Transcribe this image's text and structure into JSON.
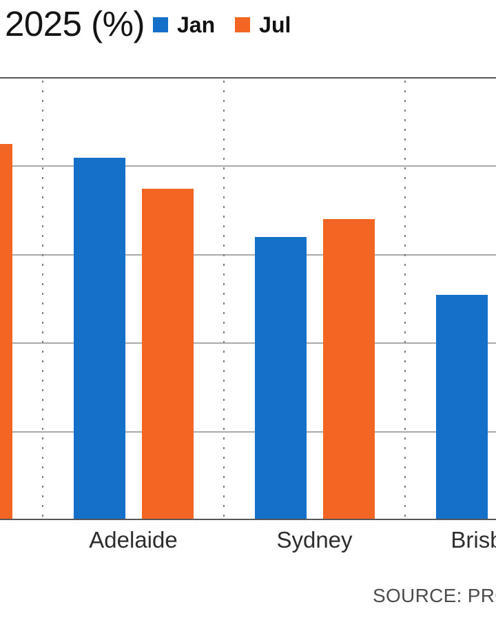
{
  "header": {
    "title": "2025 (%)"
  },
  "source": {
    "text": "SOURCE: PRO"
  },
  "chart_data": {
    "type": "bar",
    "title": "2025 (%)",
    "categories": [
      "",
      "Adelaide",
      "Sydney",
      "Brisbane"
    ],
    "series": [
      {
        "name": "Jan",
        "color": "#1470C8",
        "values": [
          null,
          4.1,
          3.2,
          2.55
        ]
      },
      {
        "name": "Jul",
        "color": "#F26522",
        "values": [
          4.25,
          3.75,
          3.4,
          null
        ]
      }
    ],
    "xlabel": "",
    "ylabel": "",
    "ylim": [
      0,
      5
    ],
    "gridline_values": [
      1,
      2,
      3,
      4
    ],
    "grid": "horizontal solid lines; dotted vertical category separators",
    "legend_position": "top",
    "frame_note": "Chart is cropped: y-axis tick labels and first category label are out of frame at left (only its Jul bar sliver visible); Brisbane Jul bar is out of frame at right; source caption truncated at right edge."
  }
}
